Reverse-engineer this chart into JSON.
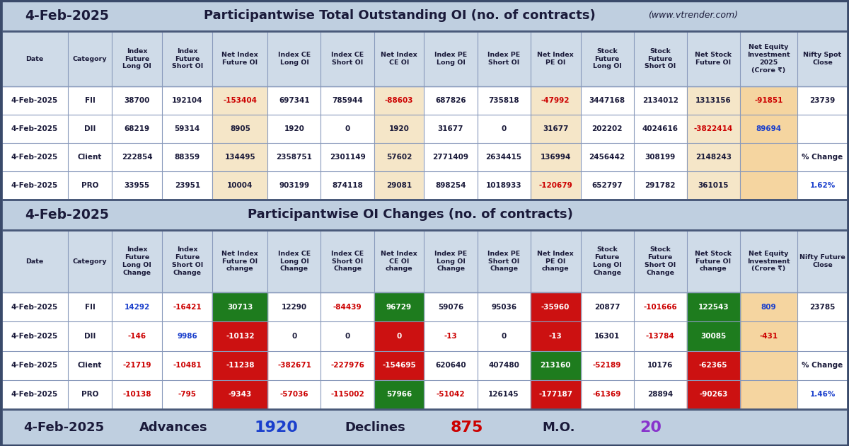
{
  "bg_color": "#bfcfe0",
  "table_white": "#ffffff",
  "net_col_bg": "#f5e6c8",
  "net_equity_col_bg": "#f5d5a0",
  "header_row_bg": "#cfdbe8",
  "green_cell": "#1e7c1e",
  "red_cell": "#cc1111",
  "section1_title": "Participantwise Total Outstanding OI (no. of contracts)",
  "section1_website": "(www.vtrender.com)",
  "section2_title": "Participantwise OI Changes (no. of contracts)",
  "date_label": "4-Feb-2025",
  "footer_date": "4-Feb-2025",
  "footer_advances_label": "Advances",
  "footer_advances_val": "1920",
  "footer_declines_label": "Declines",
  "footer_declines_val": "875",
  "footer_mo_label": "M.O.",
  "footer_mo_val": "20",
  "dark_text": "#1a1a3a",
  "red_text": "#cc0000",
  "blue_text": "#1a3fcc",
  "purple_text": "#8833cc",
  "white_text": "#ffffff",
  "sec1_col_headers": [
    "Date",
    "Category",
    "Index\nFuture\nLong OI",
    "Index\nFuture\nShort OI",
    "Net Index\nFuture OI",
    "Index CE\nLong OI",
    "Index CE\nShort OI",
    "Net Index\nCE OI",
    "Index PE\nLong OI",
    "Index PE\nShort OI",
    "Net Index\nPE OI",
    "Stock\nFuture\nLong OI",
    "Stock\nFuture\nShort OI",
    "Net Stock\nFuture OI",
    "Net Equity\nInvestment\n2025\n(Crore ₹)",
    "Nifty Spot\nClose"
  ],
  "sec1_rows": [
    [
      "4-Feb-2025",
      "FII",
      "38700",
      "192104",
      "-153404",
      "697341",
      "785944",
      "-88603",
      "687826",
      "735818",
      "-47992",
      "3447168",
      "2134012",
      "1313156",
      "-91851",
      "23739"
    ],
    [
      "4-Feb-2025",
      "DII",
      "68219",
      "59314",
      "8905",
      "1920",
      "0",
      "1920",
      "31677",
      "0",
      "31677",
      "202202",
      "4024616",
      "-3822414",
      "89694",
      ""
    ],
    [
      "4-Feb-2025",
      "Client",
      "222854",
      "88359",
      "134495",
      "2358751",
      "2301149",
      "57602",
      "2771409",
      "2634415",
      "136994",
      "2456442",
      "308199",
      "2148243",
      "",
      ""
    ],
    [
      "4-Feb-2025",
      "PRO",
      "33955",
      "23951",
      "10004",
      "903199",
      "874118",
      "29081",
      "898254",
      "1018933",
      "-120679",
      "652797",
      "291782",
      "361015",
      "",
      ""
    ]
  ],
  "sec1_text_colors": [
    [
      "dark",
      "dark",
      "dark",
      "dark",
      "red",
      "dark",
      "dark",
      "red",
      "dark",
      "dark",
      "red",
      "dark",
      "dark",
      "dark",
      "red",
      "dark"
    ],
    [
      "dark",
      "dark",
      "dark",
      "dark",
      "dark",
      "dark",
      "dark",
      "dark",
      "dark",
      "dark",
      "dark",
      "dark",
      "dark",
      "red",
      "blue",
      ""
    ],
    [
      "dark",
      "dark",
      "dark",
      "dark",
      "dark",
      "dark",
      "dark",
      "dark",
      "dark",
      "dark",
      "dark",
      "dark",
      "dark",
      "dark",
      "",
      ""
    ],
    [
      "dark",
      "dark",
      "dark",
      "dark",
      "dark",
      "dark",
      "dark",
      "dark",
      "dark",
      "dark",
      "red",
      "dark",
      "dark",
      "dark",
      "",
      ""
    ]
  ],
  "sec1_nifty_spot_rows": [
    "23739",
    "",
    "% Change",
    "1.62%"
  ],
  "sec1_nifty_spot_colors": [
    "dark",
    "dark",
    "dark",
    "blue"
  ],
  "sec2_col_headers": [
    "Date",
    "Category",
    "Index\nFuture\nLong OI\nChange",
    "Index\nFuture\nShort OI\nChange",
    "Net Index\nFuture OI\nchange",
    "Index CE\nLong OI\nChange",
    "Index CE\nShort OI\nChange",
    "Net Index\nCE OI\nchange",
    "Index PE\nLong OI\nChange",
    "Index PE\nShort OI\nChange",
    "Net Index\nPE OI\nchange",
    "Stock\nFuture\nLong OI\nChange",
    "Stock\nFuture\nShort OI\nChange",
    "Net Stock\nFuture OI\nchange",
    "Net Equity\nInvestment\n(Crore ₹)",
    "Nifty Future\nClose"
  ],
  "sec2_rows": [
    [
      "4-Feb-2025",
      "FII",
      "14292",
      "-16421",
      "30713",
      "12290",
      "-84439",
      "96729",
      "59076",
      "95036",
      "-35960",
      "20877",
      "-101666",
      "122543",
      "809",
      "23785"
    ],
    [
      "4-Feb-2025",
      "DII",
      "-146",
      "9986",
      "-10132",
      "0",
      "0",
      "0",
      "-13",
      "0",
      "-13",
      "16301",
      "-13784",
      "30085",
      "-431",
      ""
    ],
    [
      "4-Feb-2025",
      "Client",
      "-21719",
      "-10481",
      "-11238",
      "-382671",
      "-227976",
      "-154695",
      "620640",
      "407480",
      "213160",
      "-52189",
      "10176",
      "-62365",
      "",
      ""
    ],
    [
      "4-Feb-2025",
      "PRO",
      "-10138",
      "-795",
      "-9343",
      "-57036",
      "-115002",
      "57966",
      "-51042",
      "126145",
      "-177187",
      "-61369",
      "28894",
      "-90263",
      "",
      ""
    ]
  ],
  "sec2_cell_bg": [
    [
      null,
      null,
      null,
      null,
      "green",
      null,
      null,
      "green",
      null,
      null,
      "red",
      null,
      null,
      "green",
      null,
      null
    ],
    [
      null,
      null,
      null,
      null,
      "red",
      null,
      null,
      "red",
      null,
      null,
      "red",
      null,
      null,
      "green",
      null,
      null
    ],
    [
      null,
      null,
      null,
      null,
      "red",
      null,
      null,
      "red",
      null,
      null,
      "green",
      null,
      null,
      "red",
      null,
      null
    ],
    [
      null,
      null,
      null,
      null,
      "red",
      null,
      null,
      "green",
      null,
      null,
      "red",
      null,
      null,
      "red",
      null,
      null
    ]
  ],
  "sec2_text_colors": [
    [
      "dark",
      "dark",
      "blue",
      "red",
      "white",
      "dark",
      "red",
      "white",
      "dark",
      "dark",
      "white",
      "dark",
      "red",
      "white",
      "blue",
      "dark"
    ],
    [
      "dark",
      "dark",
      "red",
      "blue",
      "white",
      "dark",
      "dark",
      "white",
      "red",
      "dark",
      "white",
      "dark",
      "red",
      "white",
      "red",
      ""
    ],
    [
      "dark",
      "dark",
      "red",
      "red",
      "white",
      "red",
      "red",
      "white",
      "dark",
      "dark",
      "white",
      "red",
      "dark",
      "white",
      "",
      ""
    ],
    [
      "dark",
      "dark",
      "red",
      "red",
      "white",
      "red",
      "red",
      "white",
      "red",
      "dark",
      "white",
      "red",
      "dark",
      "white",
      "",
      ""
    ]
  ],
  "sec2_nifty_future_rows": [
    "23785",
    "",
    "% Change",
    "1.46%"
  ],
  "sec2_nifty_future_colors": [
    "dark",
    "dark",
    "dark",
    "blue"
  ]
}
